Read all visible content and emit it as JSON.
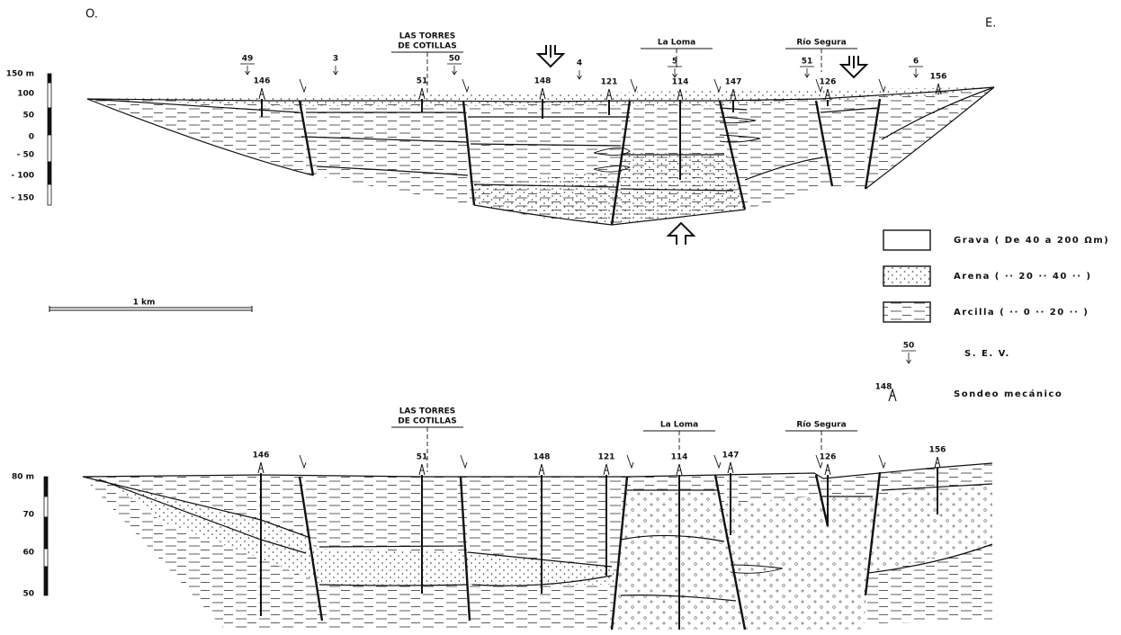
{
  "header": {
    "west": "O.",
    "east": "E."
  },
  "upper_section": {
    "scale_labels": [
      "150 m",
      "100",
      "50",
      "0",
      "- 50",
      "- 100",
      "- 150"
    ],
    "places": [
      {
        "lines": [
          "LAS TORRES",
          "DE COTILLAS"
        ]
      },
      {
        "lines": [
          "La Loma"
        ]
      },
      {
        "lines": [
          "Río Segura"
        ]
      }
    ],
    "sev": [
      "49",
      "3",
      "50",
      "4",
      "5",
      "51",
      "6"
    ],
    "boreholes": [
      "146",
      "51",
      "148",
      "121",
      "114",
      "147",
      "126",
      "156"
    ]
  },
  "scale_bar": "1 km",
  "legend": {
    "items": [
      {
        "label": "Grava ( De 40 a 200 Ωm)"
      },
      {
        "label": "Arena ( ·· 20 ·· 40 ·· )"
      },
      {
        "label": "Arcilla ( ·· 0 ·· 20 ·· )"
      }
    ],
    "sev": {
      "number": "50",
      "label": "S. E. V."
    },
    "sondeo": {
      "number": "148",
      "label": "Sondeo mecánico"
    }
  },
  "lower_section": {
    "scale_labels": [
      "80 m",
      "70",
      "60",
      "50"
    ],
    "places": [
      {
        "lines": [
          "LAS TORRES",
          "DE COTILLAS"
        ]
      },
      {
        "lines": [
          "La Loma"
        ]
      },
      {
        "lines": [
          "Río Segura"
        ]
      }
    ],
    "boreholes": [
      "146",
      "51",
      "148",
      "121",
      "114",
      "147",
      "126",
      "156"
    ]
  }
}
